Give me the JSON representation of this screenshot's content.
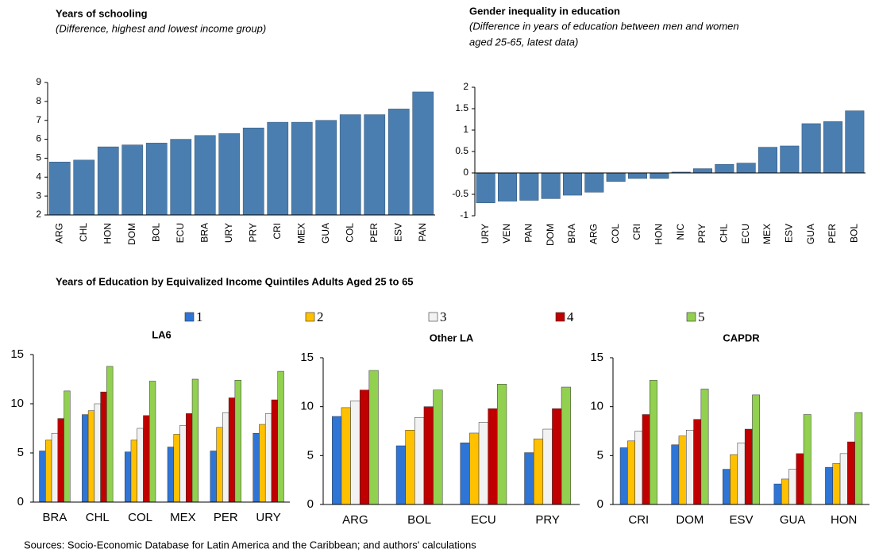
{
  "chart_data": [
    {
      "type": "bar",
      "title": "Years of schooling",
      "subtitle": [
        "(Difference, highest and lowest income group)"
      ],
      "categories": [
        "ARG",
        "CHL",
        "HON",
        "DOM",
        "BOL",
        "ECU",
        "BRA",
        "URY",
        "PRY",
        "CRI",
        "MEX",
        "GUA",
        "COL",
        "PER",
        "ESV",
        "PAN"
      ],
      "values": [
        4.8,
        4.9,
        5.6,
        5.7,
        5.8,
        6.0,
        6.2,
        6.3,
        6.6,
        6.9,
        6.9,
        7.0,
        7.3,
        7.3,
        7.6,
        8.5
      ],
      "color": "#4a7eb0",
      "ylim": [
        2,
        9
      ],
      "yticks": [
        2,
        3,
        4,
        5,
        6,
        7,
        8,
        9
      ]
    },
    {
      "type": "bar",
      "title": "Gender inequality  in education",
      "subtitle": [
        "(Difference in years of education between men and women",
        "aged 25-65, latest data)"
      ],
      "categories": [
        "URY",
        "VEN",
        "PAN",
        "DOM",
        "BRA",
        "ARG",
        "COL",
        "CRI",
        "HON",
        "NIC",
        "PRY",
        "CHL",
        "ECU",
        "MEX",
        "ESV",
        "GUA",
        "PER",
        "BOL"
      ],
      "values": [
        -0.7,
        -0.66,
        -0.64,
        -0.6,
        -0.52,
        -0.45,
        -0.2,
        -0.13,
        -0.13,
        0.02,
        0.1,
        0.2,
        0.23,
        0.6,
        0.63,
        1.15,
        1.2,
        1.45
      ],
      "color": "#4a7eb0",
      "ylim": [
        -1,
        2
      ],
      "yticks": [
        -1,
        -0.5,
        0,
        0.5,
        1,
        1.5,
        2
      ]
    },
    {
      "type": "grouped-bar",
      "title": "Years of Education by Equivalized Income Quintiles Adults Aged 25 to 65",
      "legend": [
        {
          "name": "1",
          "color": "#2e75d6"
        },
        {
          "name": "2",
          "color": "#ffc000"
        },
        {
          "name": "3",
          "color": "#f2f2f2"
        },
        {
          "name": "4",
          "color": "#c00000"
        },
        {
          "name": "5",
          "color": "#92d050"
        }
      ],
      "ylim": [
        0,
        15
      ],
      "yticks": [
        0,
        5,
        10,
        15
      ],
      "panels": [
        {
          "title": "LA6",
          "categories": [
            "BRA",
            "CHL",
            "COL",
            "MEX",
            "PER",
            "URY"
          ],
          "series": [
            {
              "values": [
                5.2,
                8.9,
                5.1,
                5.6,
                5.2,
                7.0
              ]
            },
            {
              "values": [
                6.3,
                9.3,
                6.3,
                6.9,
                7.6,
                7.9
              ]
            },
            {
              "values": [
                7.0,
                10.0,
                7.5,
                7.8,
                9.1,
                9.0
              ]
            },
            {
              "values": [
                8.5,
                11.2,
                8.8,
                9.0,
                10.6,
                10.4
              ]
            },
            {
              "values": [
                11.3,
                13.8,
                12.3,
                12.5,
                12.4,
                13.3
              ]
            }
          ]
        },
        {
          "title": "Other LA",
          "categories": [
            "ARG",
            "BOL",
            "ECU",
            "PRY"
          ],
          "series": [
            {
              "values": [
                9.0,
                6.0,
                6.3,
                5.3
              ]
            },
            {
              "values": [
                9.9,
                7.6,
                7.3,
                6.7
              ]
            },
            {
              "values": [
                10.6,
                8.9,
                8.4,
                7.7
              ]
            },
            {
              "values": [
                11.7,
                10.0,
                9.8,
                9.8
              ]
            },
            {
              "values": [
                13.7,
                11.7,
                12.3,
                12.0
              ]
            }
          ]
        },
        {
          "title": "CAPDR",
          "categories": [
            "CRI",
            "DOM",
            "ESV",
            "GUA",
            "HON"
          ],
          "series": [
            {
              "values": [
                5.8,
                6.1,
                3.6,
                2.1,
                3.8
              ]
            },
            {
              "values": [
                6.5,
                7.0,
                5.1,
                2.6,
                4.2
              ]
            },
            {
              "values": [
                7.5,
                7.6,
                6.3,
                3.6,
                5.2
              ]
            },
            {
              "values": [
                9.2,
                8.7,
                7.7,
                5.2,
                6.4
              ]
            },
            {
              "values": [
                12.7,
                11.8,
                11.2,
                9.2,
                9.4
              ]
            }
          ]
        }
      ]
    }
  ],
  "source": "Sources: Socio-Economic Database for Latin America and the Caribbean; and authors' calculations"
}
